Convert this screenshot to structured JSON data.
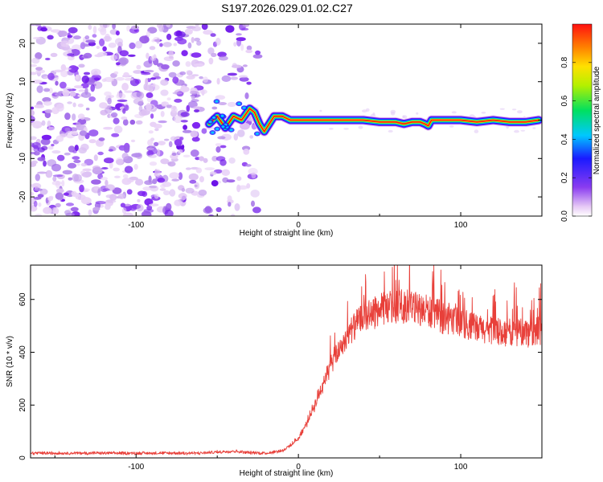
{
  "title": "S197.2026.029.01.02.C27",
  "chart_data": [
    {
      "type": "heatmap",
      "xlabel": "Height of straight line (km)",
      "ylabel": "Frequency (Hz)",
      "xlim": [
        -165,
        150
      ],
      "ylim": [
        -25,
        25
      ],
      "x_ticks": [
        -100,
        0,
        100
      ],
      "y_ticks": [
        -20,
        -10,
        0,
        10,
        20
      ],
      "x_tick_labels": [
        "-100",
        "0",
        "100"
      ],
      "y_tick_labels": [
        "-20",
        "-10",
        "0",
        "10",
        "20"
      ],
      "noise_region_x": [
        -165,
        -25
      ],
      "transition_x": [
        -55,
        -25
      ],
      "ridge": {
        "x": [
          -55,
          -50,
          -45,
          -40,
          -35,
          -30,
          -27,
          -24,
          -21,
          -18,
          -15,
          -10,
          -5,
          0,
          5,
          10,
          20,
          30,
          40,
          50,
          60,
          65,
          70,
          75,
          78,
          80,
          82,
          85,
          90,
          95,
          100,
          110,
          120,
          130,
          140,
          148
        ],
        "freq": [
          -1,
          1,
          -2,
          1,
          0,
          3,
          2,
          -1,
          -3,
          -1,
          1,
          1,
          0,
          0,
          0,
          0,
          0,
          0,
          0,
          -0.5,
          -0.5,
          -1,
          -0.5,
          -0.5,
          -1,
          -1.5,
          0,
          0,
          0,
          0,
          0,
          -0.5,
          0,
          -0.5,
          -0.5,
          0
        ]
      },
      "colorbar": {
        "label": "Normalized spectral amplitude",
        "range": [
          0,
          1
        ],
        "ticks": [
          0.0,
          0.2,
          0.4,
          0.6,
          0.8
        ],
        "tick_labels": [
          "0.0",
          "0.2",
          "0.4",
          "0.6",
          "0.8"
        ]
      }
    },
    {
      "type": "line",
      "xlabel": "Height of straight line (km)",
      "ylabel": "SNR (10 * v/v)",
      "xlim": [
        -165,
        150
      ],
      "ylim": [
        0,
        730
      ],
      "x_ticks": [
        -100,
        0,
        100
      ],
      "y_ticks": [
        0,
        200,
        400,
        600
      ],
      "x_tick_labels": [
        "-100",
        "0",
        "100"
      ],
      "y_tick_labels": [
        "0",
        "200",
        "400",
        "600"
      ],
      "color": "#e8403a",
      "envelope": {
        "x": [
          -165,
          -60,
          -50,
          -40,
          -30,
          -20,
          -10,
          -5,
          0,
          5,
          10,
          15,
          20,
          25,
          30,
          35,
          40,
          50,
          60,
          70,
          80,
          90,
          100,
          110,
          120,
          130,
          140,
          150
        ],
        "y": [
          18,
          18,
          22,
          26,
          20,
          18,
          28,
          45,
          75,
          130,
          200,
          280,
          350,
          410,
          460,
          500,
          530,
          560,
          575,
          570,
          555,
          530,
          510,
          490,
          480,
          475,
          475,
          480
        ]
      }
    }
  ]
}
